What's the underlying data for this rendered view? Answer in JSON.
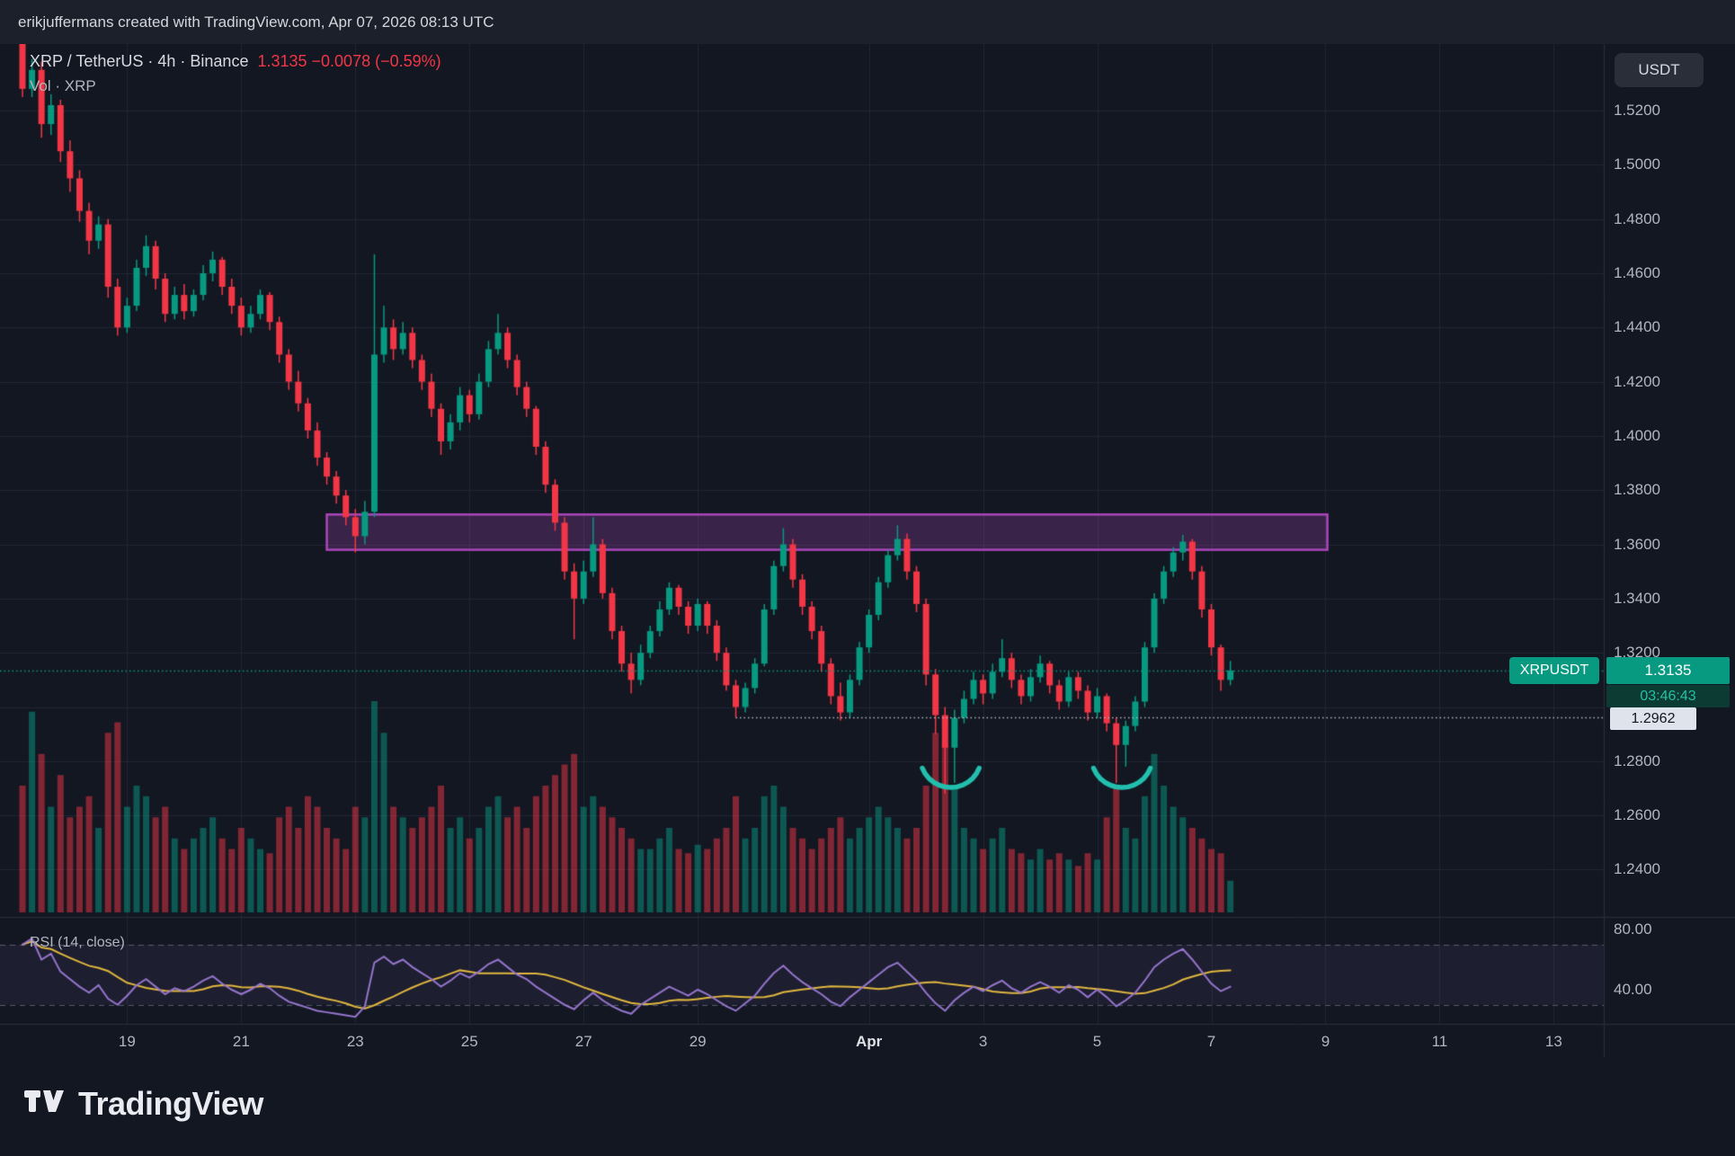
{
  "attribution": "erikjuffermans created with TradingView.com, Apr 07, 2026 08:13 UTC",
  "legend": {
    "symbol_line": "XRP / TetherUS · 4h · Binance",
    "quote": "1.3135 −0.0078 (−0.59%)",
    "volume_line": "Vol · XRP"
  },
  "axis": {
    "currency_button": "USDT",
    "price_ticks": [
      {
        "label": "1.5200",
        "value": 1.52
      },
      {
        "label": "1.5000",
        "value": 1.5
      },
      {
        "label": "1.4800",
        "value": 1.48
      },
      {
        "label": "1.4600",
        "value": 1.46
      },
      {
        "label": "1.4400",
        "value": 1.44
      },
      {
        "label": "1.4200",
        "value": 1.42
      },
      {
        "label": "1.4000",
        "value": 1.4
      },
      {
        "label": "1.3800",
        "value": 1.38
      },
      {
        "label": "1.3600",
        "value": 1.36
      },
      {
        "label": "1.3400",
        "value": 1.34
      },
      {
        "label": "1.3200",
        "value": 1.32
      },
      {
        "label": "1.2800",
        "value": 1.28
      },
      {
        "label": "1.2600",
        "value": 1.26
      },
      {
        "label": "1.2400",
        "value": 1.24
      }
    ],
    "date_ticks": [
      {
        "label": "19",
        "i": 11
      },
      {
        "label": "21",
        "i": 23
      },
      {
        "label": "23",
        "i": 35
      },
      {
        "label": "25",
        "i": 47
      },
      {
        "label": "27",
        "i": 59
      },
      {
        "label": "29",
        "i": 71
      },
      {
        "label": "Apr",
        "i": 89,
        "month": true
      },
      {
        "label": "3",
        "i": 101
      },
      {
        "label": "5",
        "i": 113
      },
      {
        "label": "7",
        "i": 125
      },
      {
        "label": "9",
        "i": 137
      },
      {
        "label": "11",
        "i": 149
      },
      {
        "label": "13",
        "i": 161
      }
    ],
    "rsi_ticks": [
      {
        "label": "80.00",
        "value": 80
      },
      {
        "label": "40.00",
        "value": 40
      }
    ]
  },
  "price_line": {
    "label": "XRPUSDT",
    "price": 1.3135,
    "price_label": "1.3135",
    "countdown": "03:46:43"
  },
  "low_line": {
    "price": 1.2962,
    "label": "1.2962",
    "start_index": 75
  },
  "zone": {
    "top_price": 1.371,
    "bottom_price": 1.358,
    "start_index": 32,
    "end_index": 137.2
  },
  "arcs": [
    {
      "index": 97.6
    },
    {
      "index": 115.6
    }
  ],
  "rsi_pane": {
    "label": "RSI (14, close)",
    "upper_band": 70,
    "lower_band": 30
  },
  "footer": {
    "brand": "TradingView"
  },
  "colors": {
    "background": "#131722",
    "up": "#089981",
    "down": "#f23645",
    "volume_up": "rgba(8,153,129,0.5)",
    "volume_down": "rgba(242,54,69,0.5)",
    "zone_fill": "rgba(171,71,188,0.25)",
    "zone_border": "#ab47bc",
    "price_line": "#089981",
    "low_line": "#b2b5be",
    "arc": "#22bfae",
    "rsi_line": "#9575cd",
    "rsi_ma": "#e0b63f",
    "grid": "rgba(42,46,57,0.7)",
    "separator": "#2a2e39",
    "axis_text": "#b2b5be",
    "legend_red": "#f23645"
  },
  "chart_data": {
    "type": "candlestick",
    "symbol": "XRPUSDT",
    "exchange": "Binance",
    "interval": "4h",
    "last_price": 1.3135,
    "change": -0.0078,
    "change_pct": -0.59,
    "price_range_visible": [
      1.24,
      1.52
    ],
    "candles": [
      [
        1.545,
        1.547,
        1.525,
        1.528
      ],
      [
        1.528,
        1.539,
        1.525,
        1.535
      ],
      [
        1.535,
        1.538,
        1.51,
        1.515
      ],
      [
        1.515,
        1.526,
        1.511,
        1.522
      ],
      [
        1.522,
        1.524,
        1.501,
        1.505
      ],
      [
        1.505,
        1.509,
        1.49,
        1.495
      ],
      [
        1.495,
        1.498,
        1.479,
        1.483
      ],
      [
        1.483,
        1.486,
        1.467,
        1.472
      ],
      [
        1.472,
        1.481,
        1.469,
        1.478
      ],
      [
        1.478,
        1.48,
        1.451,
        1.455
      ],
      [
        1.455,
        1.458,
        1.437,
        1.44
      ],
      [
        1.44,
        1.451,
        1.438,
        1.448
      ],
      [
        1.448,
        1.465,
        1.446,
        1.462
      ],
      [
        1.462,
        1.474,
        1.459,
        1.47
      ],
      [
        1.47,
        1.472,
        1.454,
        1.458
      ],
      [
        1.458,
        1.46,
        1.442,
        1.445
      ],
      [
        1.445,
        1.455,
        1.443,
        1.452
      ],
      [
        1.452,
        1.456,
        1.443,
        1.446
      ],
      [
        1.446,
        1.454,
        1.444,
        1.452
      ],
      [
        1.452,
        1.463,
        1.45,
        1.46
      ],
      [
        1.46,
        1.468,
        1.457,
        1.465
      ],
      [
        1.465,
        1.466,
        1.452,
        1.455
      ],
      [
        1.455,
        1.458,
        1.445,
        1.448
      ],
      [
        1.448,
        1.451,
        1.437,
        1.44
      ],
      [
        1.44,
        1.448,
        1.438,
        1.445
      ],
      [
        1.445,
        1.454,
        1.443,
        1.452
      ],
      [
        1.452,
        1.453,
        1.439,
        1.442
      ],
      [
        1.442,
        1.444,
        1.427,
        1.43
      ],
      [
        1.43,
        1.432,
        1.417,
        1.42
      ],
      [
        1.42,
        1.424,
        1.409,
        1.412
      ],
      [
        1.412,
        1.414,
        1.399,
        1.402
      ],
      [
        1.402,
        1.405,
        1.389,
        1.392
      ],
      [
        1.392,
        1.394,
        1.382,
        1.385
      ],
      [
        1.385,
        1.387,
        1.375,
        1.378
      ],
      [
        1.378,
        1.38,
        1.367,
        1.37
      ],
      [
        1.37,
        1.373,
        1.357,
        1.363
      ],
      [
        1.363,
        1.376,
        1.36,
        1.372
      ],
      [
        1.372,
        1.467,
        1.37,
        1.43
      ],
      [
        1.43,
        1.448,
        1.427,
        1.44
      ],
      [
        1.44,
        1.443,
        1.428,
        1.432
      ],
      [
        1.432,
        1.442,
        1.43,
        1.438
      ],
      [
        1.438,
        1.44,
        1.425,
        1.428
      ],
      [
        1.428,
        1.43,
        1.417,
        1.42
      ],
      [
        1.42,
        1.423,
        1.407,
        1.41
      ],
      [
        1.41,
        1.412,
        1.393,
        1.398
      ],
      [
        1.398,
        1.408,
        1.395,
        1.405
      ],
      [
        1.405,
        1.418,
        1.402,
        1.415
      ],
      [
        1.415,
        1.417,
        1.405,
        1.408
      ],
      [
        1.408,
        1.423,
        1.406,
        1.42
      ],
      [
        1.42,
        1.435,
        1.418,
        1.432
      ],
      [
        1.432,
        1.445,
        1.43,
        1.438
      ],
      [
        1.438,
        1.44,
        1.425,
        1.428
      ],
      [
        1.428,
        1.43,
        1.415,
        1.418
      ],
      [
        1.418,
        1.42,
        1.407,
        1.41
      ],
      [
        1.41,
        1.411,
        1.393,
        1.396
      ],
      [
        1.396,
        1.398,
        1.379,
        1.382
      ],
      [
        1.382,
        1.384,
        1.365,
        1.368
      ],
      [
        1.368,
        1.37,
        1.347,
        1.35
      ],
      [
        1.35,
        1.353,
        1.325,
        1.34
      ],
      [
        1.34,
        1.354,
        1.338,
        1.35
      ],
      [
        1.35,
        1.37,
        1.348,
        1.36
      ],
      [
        1.36,
        1.362,
        1.34,
        1.342
      ],
      [
        1.342,
        1.344,
        1.325,
        1.328
      ],
      [
        1.328,
        1.33,
        1.313,
        1.316
      ],
      [
        1.316,
        1.32,
        1.305,
        1.31
      ],
      [
        1.31,
        1.323,
        1.308,
        1.32
      ],
      [
        1.32,
        1.33,
        1.318,
        1.328
      ],
      [
        1.328,
        1.339,
        1.326,
        1.336
      ],
      [
        1.336,
        1.346,
        1.334,
        1.344
      ],
      [
        1.344,
        1.345,
        1.334,
        1.337
      ],
      [
        1.337,
        1.339,
        1.327,
        1.33
      ],
      [
        1.33,
        1.34,
        1.328,
        1.338
      ],
      [
        1.338,
        1.339,
        1.327,
        1.33
      ],
      [
        1.33,
        1.332,
        1.317,
        1.32
      ],
      [
        1.32,
        1.322,
        1.306,
        1.308
      ],
      [
        1.308,
        1.31,
        1.2962,
        1.3
      ],
      [
        1.3,
        1.309,
        1.298,
        1.307
      ],
      [
        1.307,
        1.318,
        1.305,
        1.316
      ],
      [
        1.316,
        1.338,
        1.315,
        1.336
      ],
      [
        1.336,
        1.354,
        1.334,
        1.352
      ],
      [
        1.352,
        1.366,
        1.35,
        1.36
      ],
      [
        1.36,
        1.362,
        1.344,
        1.347
      ],
      [
        1.347,
        1.349,
        1.334,
        1.337
      ],
      [
        1.337,
        1.339,
        1.325,
        1.328
      ],
      [
        1.328,
        1.33,
        1.313,
        1.316
      ],
      [
        1.316,
        1.318,
        1.301,
        1.304
      ],
      [
        1.304,
        1.309,
        1.295,
        1.298
      ],
      [
        1.298,
        1.312,
        1.296,
        1.31
      ],
      [
        1.31,
        1.324,
        1.308,
        1.322
      ],
      [
        1.322,
        1.336,
        1.32,
        1.334
      ],
      [
        1.334,
        1.348,
        1.332,
        1.346
      ],
      [
        1.346,
        1.358,
        1.344,
        1.356
      ],
      [
        1.356,
        1.367,
        1.354,
        1.362
      ],
      [
        1.362,
        1.364,
        1.347,
        1.35
      ],
      [
        1.35,
        1.352,
        1.335,
        1.338
      ],
      [
        1.338,
        1.34,
        1.308,
        1.312
      ],
      [
        1.312,
        1.314,
        1.29,
        1.297
      ],
      [
        1.297,
        1.3,
        1.268,
        1.285
      ],
      [
        1.285,
        1.299,
        1.272,
        1.296
      ],
      [
        1.296,
        1.306,
        1.294,
        1.303
      ],
      [
        1.303,
        1.313,
        1.301,
        1.31
      ],
      [
        1.31,
        1.312,
        1.301,
        1.305
      ],
      [
        1.305,
        1.316,
        1.303,
        1.313
      ],
      [
        1.313,
        1.325,
        1.311,
        1.318
      ],
      [
        1.318,
        1.32,
        1.307,
        1.31
      ],
      [
        1.31,
        1.312,
        1.301,
        1.304
      ],
      [
        1.304,
        1.314,
        1.302,
        1.311
      ],
      [
        1.311,
        1.319,
        1.309,
        1.316
      ],
      [
        1.316,
        1.317,
        1.305,
        1.308
      ],
      [
        1.308,
        1.31,
        1.299,
        1.302
      ],
      [
        1.302,
        1.313,
        1.3,
        1.311
      ],
      [
        1.311,
        1.313,
        1.303,
        1.306
      ],
      [
        1.306,
        1.308,
        1.295,
        1.298
      ],
      [
        1.298,
        1.307,
        1.296,
        1.304
      ],
      [
        1.304,
        1.305,
        1.291,
        1.294
      ],
      [
        1.294,
        1.296,
        1.272,
        1.286
      ],
      [
        1.286,
        1.295,
        1.278,
        1.293
      ],
      [
        1.293,
        1.304,
        1.291,
        1.302
      ],
      [
        1.302,
        1.324,
        1.3,
        1.322
      ],
      [
        1.322,
        1.342,
        1.32,
        1.34
      ],
      [
        1.34,
        1.352,
        1.338,
        1.35
      ],
      [
        1.35,
        1.359,
        1.348,
        1.357
      ],
      [
        1.357,
        1.3635,
        1.354,
        1.361
      ],
      [
        1.361,
        1.362,
        1.347,
        1.35
      ],
      [
        1.35,
        1.352,
        1.333,
        1.336
      ],
      [
        1.336,
        1.338,
        1.319,
        1.322
      ],
      [
        1.322,
        1.323,
        1.306,
        1.31
      ],
      [
        1.31,
        1.317,
        1.308,
        1.3135
      ]
    ],
    "volumes": [
      0.6,
      0.95,
      0.75,
      0.5,
      0.65,
      0.45,
      0.5,
      0.55,
      0.4,
      0.85,
      0.9,
      0.5,
      0.6,
      0.55,
      0.45,
      0.5,
      0.35,
      0.3,
      0.35,
      0.4,
      0.45,
      0.35,
      0.3,
      0.4,
      0.35,
      0.3,
      0.28,
      0.45,
      0.5,
      0.4,
      0.55,
      0.5,
      0.4,
      0.35,
      0.3,
      0.5,
      0.45,
      1.0,
      0.85,
      0.5,
      0.45,
      0.4,
      0.45,
      0.5,
      0.6,
      0.4,
      0.45,
      0.35,
      0.4,
      0.5,
      0.55,
      0.45,
      0.5,
      0.4,
      0.55,
      0.6,
      0.65,
      0.7,
      0.75,
      0.5,
      0.55,
      0.5,
      0.45,
      0.4,
      0.35,
      0.3,
      0.3,
      0.35,
      0.4,
      0.3,
      0.28,
      0.32,
      0.3,
      0.35,
      0.4,
      0.55,
      0.35,
      0.4,
      0.55,
      0.6,
      0.5,
      0.4,
      0.35,
      0.3,
      0.35,
      0.4,
      0.45,
      0.35,
      0.4,
      0.45,
      0.5,
      0.45,
      0.4,
      0.35,
      0.4,
      0.6,
      0.85,
      0.8,
      0.6,
      0.4,
      0.35,
      0.3,
      0.35,
      0.4,
      0.3,
      0.28,
      0.25,
      0.3,
      0.25,
      0.28,
      0.25,
      0.22,
      0.28,
      0.25,
      0.45,
      0.6,
      0.4,
      0.35,
      0.55,
      0.75,
      0.6,
      0.5,
      0.45,
      0.4,
      0.35,
      0.3,
      0.28,
      0.15
    ],
    "rsi": [
      70,
      74,
      60,
      64,
      52,
      47,
      42,
      38,
      43,
      34,
      30,
      36,
      43,
      47,
      42,
      37,
      41,
      39,
      42,
      46,
      49,
      44,
      40,
      37,
      40,
      44,
      41,
      36,
      32,
      30,
      28,
      26,
      25,
      24,
      23,
      22,
      29,
      58,
      62,
      57,
      60,
      55,
      51,
      47,
      42,
      46,
      51,
      48,
      52,
      57,
      60,
      55,
      50,
      47,
      42,
      38,
      34,
      30,
      27,
      33,
      38,
      33,
      29,
      26,
      24,
      30,
      34,
      38,
      42,
      39,
      36,
      40,
      37,
      33,
      29,
      26,
      31,
      36,
      44,
      51,
      56,
      50,
      45,
      41,
      37,
      32,
      29,
      35,
      40,
      45,
      50,
      55,
      58,
      52,
      46,
      38,
      31,
      26,
      33,
      38,
      42,
      39,
      43,
      46,
      41,
      38,
      42,
      45,
      42,
      38,
      43,
      40,
      35,
      40,
      35,
      29,
      33,
      38,
      46,
      55,
      60,
      64,
      67,
      60,
      52,
      44,
      39,
      42
    ]
  }
}
